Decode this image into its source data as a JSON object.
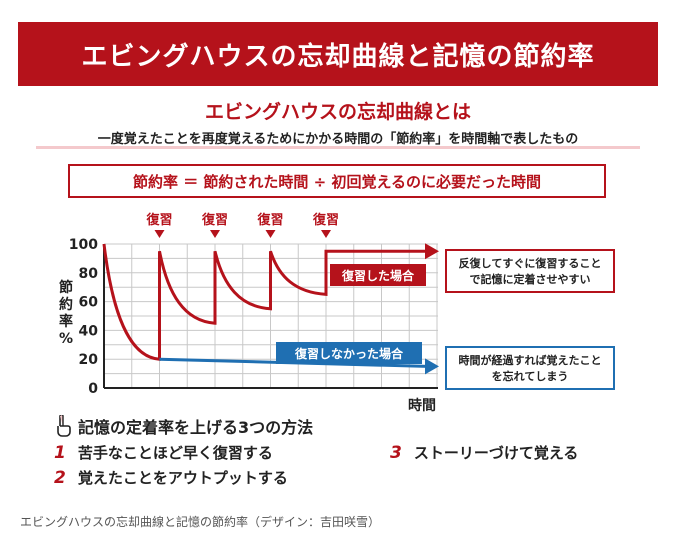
{
  "header": {
    "title": "エビングハウスの忘却曲線と記憶の節約率"
  },
  "intro": {
    "subtitle": "エビングハウスの忘却曲線とは",
    "description": "一度覚えたことを再度覚えるためにかかる時間の「節約率」を時間軸で表したもの"
  },
  "formula": {
    "text": "節約率 ＝ 節約された時間 ÷ 初回覚えるのに必要だった時間"
  },
  "chart_data": {
    "type": "line",
    "ylabel": "節約率%",
    "xlabel": "時間",
    "ylim": [
      0,
      100
    ],
    "yticks": [
      "100",
      "80",
      "60",
      "40",
      "20",
      "0"
    ],
    "review_markers": [
      "復習",
      "復習",
      "復習",
      "復習"
    ],
    "series": [
      {
        "name": "復習した場合",
        "color": "#b5121b",
        "points": [
          [
            0,
            100
          ],
          [
            1,
            20
          ],
          [
            1,
            95
          ],
          [
            2,
            45
          ],
          [
            2,
            95
          ],
          [
            3,
            55
          ],
          [
            3,
            95
          ],
          [
            4,
            65
          ],
          [
            4,
            95
          ],
          [
            6,
            95
          ]
        ]
      },
      {
        "name": "復習しなかった場合",
        "color": "#1f6fb2",
        "points": [
          [
            1,
            20
          ],
          [
            6,
            15
          ]
        ]
      }
    ],
    "annotations": [
      {
        "name": "reviewed-note",
        "lines": [
          "反復してすぐに復習すること",
          "で記憶に定着させやすい"
        ],
        "color": "#b5121b"
      },
      {
        "name": "not-reviewed-note",
        "lines": [
          "時間が経過すれば覚えたこと",
          "を忘れてしまう"
        ],
        "color": "#1f6fb2"
      }
    ]
  },
  "methods": {
    "title": "記憶の定着率を上げる3つの方法",
    "items": [
      {
        "num": "1",
        "text": "苦手なことほど早く復習する"
      },
      {
        "num": "2",
        "text": "覚えたことをアウトプットする"
      },
      {
        "num": "3",
        "text": "ストーリーづけて覚える"
      }
    ]
  },
  "caption": "エビングハウスの忘却曲線と記憶の節約率（デザイン：吉田咲雪）"
}
